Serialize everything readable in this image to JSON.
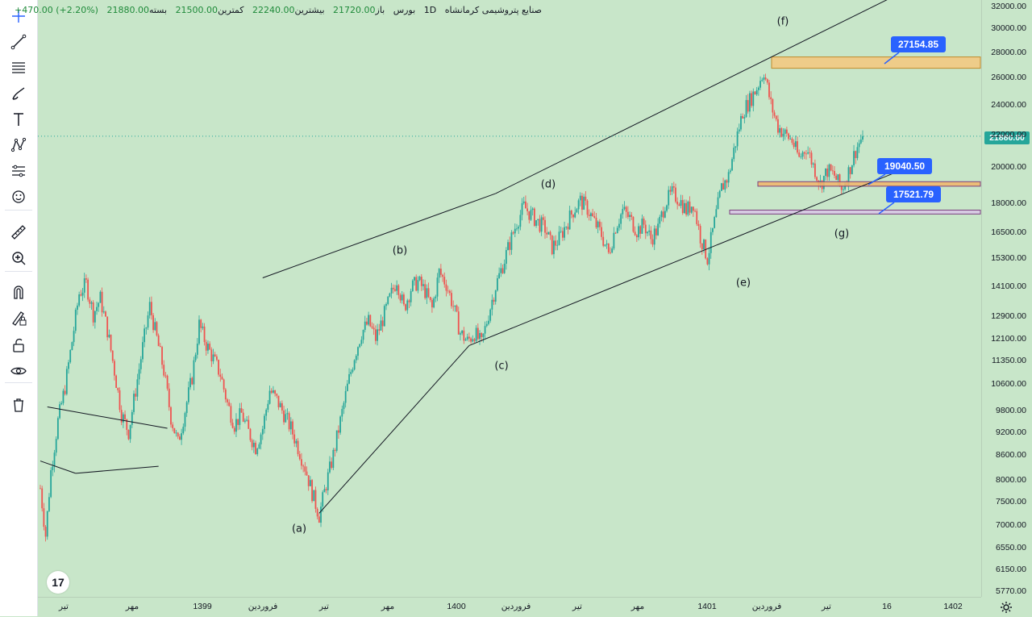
{
  "header": {
    "symbol": "صنایع پتروشیمی کرمانشاه",
    "interval": "1D",
    "exchange": "بورس",
    "open_label": "باز",
    "open": "21720.00",
    "high_label": "بیشترین",
    "high": "22240.00",
    "low_label": "کمترین",
    "low": "21500.00",
    "close_label": "بسته",
    "close": "21880.00",
    "change": "+470.00 (+2.20%)"
  },
  "colors": {
    "background": "#c8e6c9",
    "up": "#26a69a",
    "down": "#ef5350",
    "zone_top": "#f5b76b",
    "callout": "#2962ff"
  },
  "toolbar": {
    "tools": [
      "crosshair-icon",
      "trend-line-icon",
      "fib-lines-icon",
      "brush-icon",
      "text-icon",
      "pattern-icon",
      "prediction-icon",
      "emoji-icon",
      "ruler-icon",
      "zoom-in-icon",
      "magnet-icon",
      "lock-drawing-icon",
      "unlock-icon",
      "eye-icon",
      "trash-icon"
    ]
  },
  "chart_data": {
    "type": "candlestick",
    "scale": "log",
    "ylim": [
      5600,
      32600
    ],
    "price_ticks": [
      "32000.00",
      "30000.00",
      "28000.00",
      "26000.00",
      "24000.00",
      "22000.00",
      "20000.00",
      "18000.00",
      "16500.00",
      "15300.00",
      "14100.00",
      "12900.00",
      "12100.00",
      "11350.00",
      "10600.00",
      "9800.00",
      "9200.00",
      "8600.00",
      "8000.00",
      "7500.00",
      "7000.00",
      "6550.00",
      "6150.00",
      "5770.00"
    ],
    "last_price": "21880.00",
    "time_ticks": [
      "تیر",
      "مهر",
      "1399",
      "فروردین",
      "تیر",
      "مهر",
      "1400",
      "فروردین",
      "تیر",
      "مهر",
      "1401",
      "فروردین",
      "تیر",
      "16",
      "1402"
    ],
    "wave_labels": [
      "(a)",
      "(b)",
      "(c)",
      "(d)",
      "(e)",
      "(f)",
      "(g)"
    ],
    "callouts": [
      "27154.85",
      "19040.50",
      "17521.79"
    ],
    "price_path": [
      [
        0,
        7800
      ],
      [
        3,
        6800
      ],
      [
        6,
        8200
      ],
      [
        10,
        9500
      ],
      [
        14,
        10500
      ],
      [
        18,
        12000
      ],
      [
        22,
        13800
      ],
      [
        26,
        14200
      ],
      [
        30,
        13000
      ],
      [
        34,
        13600
      ],
      [
        38,
        12400
      ],
      [
        42,
        11000
      ],
      [
        46,
        9700
      ],
      [
        50,
        9200
      ],
      [
        54,
        10400
      ],
      [
        58,
        11800
      ],
      [
        62,
        13300
      ],
      [
        66,
        12100
      ],
      [
        70,
        11000
      ],
      [
        74,
        9600
      ],
      [
        78,
        8900
      ],
      [
        82,
        9800
      ],
      [
        86,
        10800
      ],
      [
        90,
        12600
      ],
      [
        94,
        11900
      ],
      [
        98,
        11400
      ],
      [
        102,
        10900
      ],
      [
        106,
        10000
      ],
      [
        110,
        9400
      ],
      [
        114,
        9700
      ],
      [
        118,
        9200
      ],
      [
        122,
        8800
      ],
      [
        126,
        9300
      ],
      [
        130,
        10400
      ],
      [
        134,
        10100
      ],
      [
        138,
        9700
      ],
      [
        142,
        9300
      ],
      [
        146,
        8800
      ],
      [
        150,
        8300
      ],
      [
        154,
        7700
      ],
      [
        158,
        7200
      ],
      [
        162,
        7900
      ],
      [
        166,
        8600
      ],
      [
        170,
        9500
      ],
      [
        174,
        10500
      ],
      [
        178,
        11500
      ],
      [
        182,
        12300
      ],
      [
        186,
        12700
      ],
      [
        190,
        12100
      ],
      [
        194,
        12800
      ],
      [
        198,
        13600
      ],
      [
        202,
        14400
      ],
      [
        206,
        13200
      ],
      [
        210,
        14000
      ],
      [
        214,
        14300
      ],
      [
        218,
        13900
      ],
      [
        222,
        13200
      ],
      [
        226,
        14700
      ],
      [
        230,
        14200
      ],
      [
        234,
        13300
      ],
      [
        238,
        12300
      ],
      [
        242,
        12000
      ],
      [
        246,
        12300
      ],
      [
        250,
        11900
      ],
      [
        254,
        13000
      ],
      [
        258,
        14100
      ],
      [
        262,
        15000
      ],
      [
        266,
        16000
      ],
      [
        270,
        17000
      ],
      [
        274,
        17800
      ],
      [
        278,
        17400
      ],
      [
        282,
        17000
      ],
      [
        286,
        16700
      ],
      [
        290,
        15800
      ],
      [
        294,
        16200
      ],
      [
        298,
        16900
      ],
      [
        302,
        17600
      ],
      [
        306,
        18100
      ],
      [
        310,
        17700
      ],
      [
        314,
        17000
      ],
      [
        318,
        16400
      ],
      [
        322,
        15500
      ],
      [
        326,
        16800
      ],
      [
        330,
        17600
      ],
      [
        334,
        17200
      ],
      [
        338,
        16600
      ],
      [
        342,
        16900
      ],
      [
        346,
        16200
      ],
      [
        350,
        16700
      ],
      [
        354,
        18000
      ],
      [
        358,
        18500
      ],
      [
        362,
        18200
      ],
      [
        366,
        17600
      ],
      [
        370,
        18000
      ],
      [
        374,
        16300
      ],
      [
        378,
        15300
      ],
      [
        382,
        17000
      ],
      [
        386,
        18800
      ],
      [
        390,
        19500
      ],
      [
        394,
        21500
      ],
      [
        398,
        23500
      ],
      [
        402,
        24300
      ],
      [
        406,
        25200
      ],
      [
        410,
        26500
      ],
      [
        414,
        24000
      ],
      [
        418,
        22500
      ],
      [
        422,
        22000
      ],
      [
        426,
        21600
      ],
      [
        430,
        20500
      ],
      [
        434,
        21200
      ],
      [
        438,
        20100
      ],
      [
        442,
        19000
      ],
      [
        446,
        19800
      ],
      [
        450,
        19500
      ],
      [
        454,
        18700
      ],
      [
        458,
        19700
      ],
      [
        462,
        21000
      ],
      [
        466,
        21880
      ]
    ],
    "channels": [
      {
        "from": [
          4,
          9900
        ],
        "to": [
          72,
          9300
        ]
      },
      {
        "from": [
          0,
          8450
        ],
        "to": [
          20,
          8150
        ]
      },
      {
        "from": [
          20,
          8150
        ],
        "to": [
          67,
          8320
        ]
      },
      {
        "from": [
          158,
          7250
        ],
        "to": [
          243,
          11850
        ]
      },
      {
        "from": [
          243,
          11850
        ],
        "to": [
          490,
          19900
        ]
      },
      {
        "from": [
          126,
          14450
        ],
        "to": [
          258,
          18500
        ]
      },
      {
        "from": [
          258,
          18500
        ],
        "to": [
          490,
          33500
        ]
      }
    ]
  }
}
